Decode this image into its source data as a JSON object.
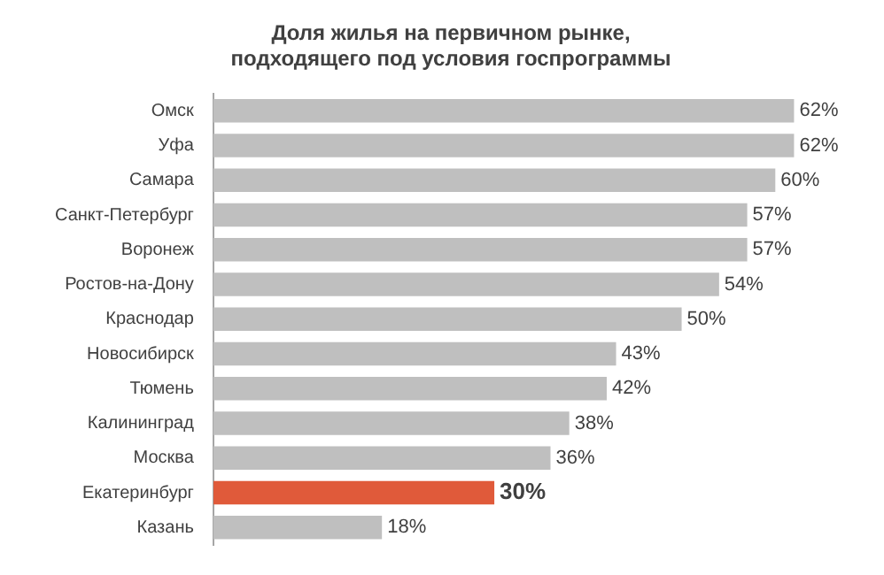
{
  "chart_data": {
    "type": "bar",
    "orientation": "horizontal",
    "title": "Доля жилья на первичном рынке,\nподходящего под условия госпрограммы",
    "categories": [
      "Омск",
      "Уфа",
      "Самара",
      "Санкт-Петербург",
      "Воронеж",
      "Ростов-на-Дону",
      "Краснодар",
      "Новосибирск",
      "Тюмень",
      "Калининград",
      "Москва",
      "Екатеринбург",
      "Казань"
    ],
    "values": [
      62,
      62,
      60,
      57,
      57,
      54,
      50,
      43,
      42,
      38,
      36,
      30,
      18
    ],
    "value_labels": [
      "62%",
      "62%",
      "60%",
      "57%",
      "57%",
      "54%",
      "50%",
      "43%",
      "42%",
      "38%",
      "36%",
      "30%",
      "18%"
    ],
    "colors": [
      "#bfbfbf",
      "#bfbfbf",
      "#bfbfbf",
      "#bfbfbf",
      "#bfbfbf",
      "#bfbfbf",
      "#bfbfbf",
      "#bfbfbf",
      "#bfbfbf",
      "#bfbfbf",
      "#bfbfbf",
      "#e05a3a",
      "#bfbfbf"
    ]
  }
}
